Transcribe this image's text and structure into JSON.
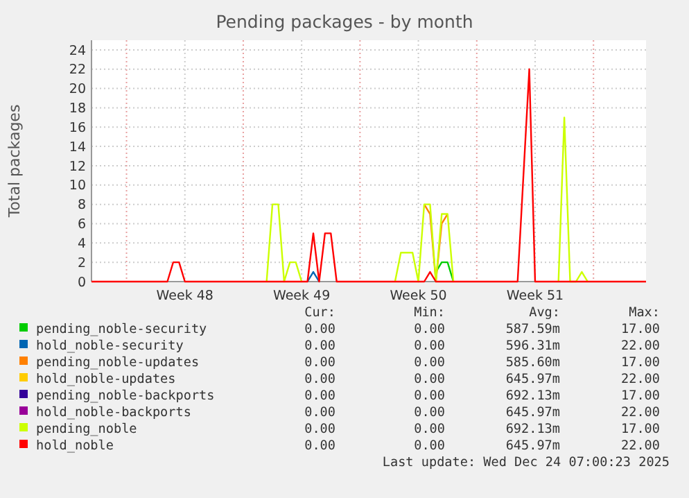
{
  "chart_data": {
    "type": "line",
    "title": "Pending packages - by month",
    "ylabel": "Total packages",
    "categories": [
      null,
      null,
      null,
      null,
      null,
      null,
      null,
      null,
      null,
      null,
      null,
      null,
      null,
      null,
      null,
      null,
      "Week 48",
      null,
      null,
      null,
      null,
      null,
      null,
      null,
      null,
      null,
      null,
      null,
      null,
      null,
      null,
      null,
      null,
      null,
      null,
      null,
      "Week 49",
      null,
      null,
      null,
      null,
      null,
      null,
      null,
      null,
      null,
      null,
      null,
      null,
      null,
      null,
      null,
      null,
      null,
      null,
      null,
      "Week 50",
      null,
      null,
      null,
      null,
      null,
      null,
      null,
      null,
      null,
      null,
      null,
      null,
      null,
      null,
      null,
      null,
      null,
      null,
      null,
      "Week 51",
      null,
      null,
      null,
      null,
      null,
      null,
      null,
      null,
      null,
      null,
      null,
      null,
      null,
      null,
      null,
      null,
      null,
      null,
      null
    ],
    "ylim": [
      0,
      25
    ],
    "yticks": [
      0,
      2,
      4,
      6,
      8,
      10,
      12,
      14,
      16,
      18,
      20,
      22,
      24
    ],
    "grid": true,
    "legend": "bottom",
    "marker": "none",
    "line_style": "solid",
    "series": [
      {
        "name": "pending_noble-security",
        "color": "#00cc00",
        "values": [
          null,
          null,
          null,
          null,
          null,
          null,
          null,
          null,
          null,
          null,
          null,
          null,
          null,
          null,
          null,
          null,
          null,
          null,
          null,
          null,
          null,
          null,
          null,
          null,
          null,
          null,
          null,
          null,
          null,
          null,
          null,
          null,
          null,
          null,
          null,
          null,
          null,
          null,
          null,
          null,
          null,
          null,
          null,
          null,
          null,
          null,
          null,
          null,
          null,
          null,
          null,
          null,
          null,
          null,
          null,
          null,
          null,
          null,
          null,
          1,
          2,
          2,
          0,
          null,
          null,
          null,
          null,
          null,
          null,
          null,
          null,
          null,
          null,
          null,
          null,
          null,
          null,
          null,
          null,
          null,
          null,
          null,
          null,
          null,
          null,
          null,
          null,
          null,
          null,
          null,
          null,
          null,
          null,
          null,
          null,
          null
        ]
      },
      {
        "name": "hold_noble-security",
        "color": "#0066b3",
        "values": [
          null,
          null,
          null,
          null,
          null,
          null,
          null,
          null,
          null,
          null,
          null,
          null,
          null,
          null,
          null,
          null,
          null,
          null,
          null,
          null,
          null,
          null,
          null,
          null,
          null,
          null,
          null,
          null,
          null,
          null,
          null,
          null,
          null,
          null,
          null,
          null,
          null,
          0,
          1,
          0,
          null,
          null,
          null,
          null,
          null,
          null,
          null,
          null,
          null,
          null,
          null,
          null,
          null,
          null,
          null,
          null,
          null,
          null,
          null,
          null,
          null,
          null,
          null,
          null,
          null,
          null,
          null,
          null,
          null,
          null,
          null,
          null,
          null,
          null,
          null,
          null,
          null,
          null,
          null,
          null,
          null,
          null,
          null,
          null,
          null,
          null,
          null,
          null,
          null,
          null,
          null,
          null,
          null,
          null,
          null,
          null
        ]
      },
      {
        "name": "pending_noble-updates",
        "color": "#ff8000",
        "values": [
          null,
          null,
          null,
          null,
          null,
          null,
          null,
          null,
          null,
          null,
          null,
          null,
          null,
          null,
          null,
          null,
          null,
          null,
          null,
          null,
          null,
          null,
          null,
          null,
          null,
          null,
          null,
          null,
          null,
          null,
          null,
          null,
          null,
          null,
          null,
          null,
          null,
          null,
          null,
          null,
          null,
          null,
          null,
          null,
          null,
          null,
          null,
          null,
          null,
          null,
          null,
          null,
          null,
          null,
          null,
          null,
          null,
          8,
          7,
          0,
          6,
          7,
          null,
          null,
          null,
          null,
          null,
          null,
          null,
          null,
          null,
          null,
          null,
          null,
          null,
          null,
          null,
          null,
          null,
          null,
          null,
          null,
          null,
          null,
          null,
          null,
          null,
          null,
          null,
          null,
          null,
          null,
          null,
          null,
          null,
          null
        ]
      },
      {
        "name": "hold_noble-updates",
        "color": "#ffcc00",
        "values": [
          null,
          null,
          null,
          null,
          null,
          null,
          null,
          null,
          null,
          null,
          null,
          null,
          null,
          null,
          null,
          null,
          null,
          null,
          null,
          null,
          null,
          null,
          null,
          null,
          null,
          null,
          null,
          null,
          null,
          null,
          null,
          null,
          null,
          null,
          null,
          null,
          null,
          null,
          null,
          null,
          null,
          null,
          null,
          null,
          null,
          null,
          null,
          null,
          null,
          null,
          null,
          null,
          null,
          null,
          null,
          null,
          null,
          null,
          null,
          null,
          null,
          null,
          null,
          null,
          null,
          null,
          null,
          null,
          null,
          null,
          null,
          null,
          null,
          null,
          null,
          null,
          null,
          null,
          null,
          null,
          null,
          null,
          null,
          null,
          null,
          null,
          null,
          null,
          null,
          null,
          null,
          null,
          null,
          null,
          null,
          null
        ]
      },
      {
        "name": "pending_noble-backports",
        "color": "#330099",
        "values": [
          null,
          null,
          null,
          null,
          null,
          null,
          null,
          null,
          null,
          null,
          null,
          null,
          null,
          null,
          null,
          null,
          null,
          null,
          null,
          null,
          null,
          null,
          null,
          null,
          null,
          null,
          null,
          null,
          null,
          null,
          null,
          null,
          null,
          null,
          null,
          null,
          null,
          null,
          null,
          null,
          null,
          null,
          null,
          null,
          null,
          null,
          null,
          null,
          null,
          null,
          null,
          null,
          null,
          null,
          null,
          null,
          null,
          null,
          null,
          null,
          null,
          null,
          null,
          null,
          null,
          null,
          null,
          null,
          null,
          null,
          null,
          null,
          null,
          null,
          null,
          null,
          null,
          null,
          null,
          null,
          null,
          null,
          null,
          null,
          null,
          null,
          null,
          null,
          null,
          null,
          null,
          null,
          null,
          null,
          null,
          null
        ]
      },
      {
        "name": "hold_noble-backports",
        "color": "#990099",
        "values": [
          null,
          null,
          null,
          null,
          null,
          null,
          null,
          null,
          null,
          null,
          null,
          null,
          null,
          null,
          null,
          null,
          null,
          null,
          null,
          null,
          null,
          null,
          null,
          null,
          null,
          null,
          null,
          null,
          null,
          null,
          null,
          null,
          null,
          null,
          null,
          null,
          null,
          null,
          null,
          null,
          null,
          null,
          null,
          null,
          null,
          null,
          null,
          null,
          null,
          null,
          null,
          null,
          null,
          null,
          null,
          null,
          null,
          null,
          null,
          null,
          null,
          null,
          null,
          null,
          null,
          null,
          null,
          null,
          null,
          null,
          null,
          null,
          null,
          null,
          null,
          null,
          null,
          null,
          null,
          null,
          null,
          null,
          null,
          null,
          null,
          null,
          null,
          null,
          null,
          null,
          null,
          null,
          null,
          null,
          null,
          null
        ]
      },
      {
        "name": "pending_noble",
        "color": "#ccff00",
        "values": [
          null,
          null,
          null,
          null,
          null,
          null,
          null,
          null,
          null,
          null,
          null,
          null,
          null,
          null,
          null,
          null,
          null,
          null,
          null,
          null,
          null,
          null,
          null,
          null,
          null,
          null,
          null,
          null,
          null,
          null,
          0,
          8,
          8,
          0,
          2,
          2,
          0,
          null,
          null,
          null,
          null,
          null,
          null,
          null,
          null,
          null,
          null,
          null,
          null,
          null,
          null,
          null,
          0,
          3,
          3,
          3,
          0,
          8,
          8,
          0,
          7,
          7,
          0,
          null,
          null,
          null,
          null,
          null,
          null,
          null,
          null,
          null,
          null,
          null,
          null,
          null,
          null,
          null,
          null,
          null,
          0,
          17,
          0,
          0,
          1,
          0,
          null,
          null,
          null,
          null,
          null,
          null,
          null,
          null,
          null,
          null
        ]
      },
      {
        "name": "hold_noble",
        "color": "#ff0000",
        "values": [
          0,
          0,
          0,
          0,
          0,
          0,
          0,
          0,
          0,
          0,
          0,
          0,
          0,
          0,
          2,
          2,
          0,
          0,
          0,
          0,
          0,
          0,
          0,
          0,
          0,
          0,
          0,
          0,
          0,
          0,
          0,
          0,
          0,
          0,
          0,
          0,
          0,
          0,
          5,
          0,
          5,
          5,
          0,
          0,
          0,
          0,
          0,
          0,
          0,
          0,
          0,
          0,
          0,
          0,
          0,
          0,
          0,
          0,
          1,
          0,
          0,
          0,
          0,
          0,
          0,
          0,
          0,
          0,
          0,
          0,
          0,
          0,
          0,
          0,
          11,
          22,
          0,
          0,
          0,
          0,
          0,
          0,
          0,
          0,
          0,
          0,
          0,
          0,
          0,
          0,
          0,
          0,
          0,
          0,
          0,
          0
        ]
      }
    ],
    "annotations": [
      "Cur:",
      "Min:",
      "Avg:",
      "Max:",
      "0.00",
      "0.00",
      "587.59m",
      "17.00",
      "0.00",
      "0.00",
      "596.31m",
      "22.00",
      "0.00",
      "0.00",
      "585.60m",
      "17.00",
      "0.00",
      "0.00",
      "645.97m",
      "22.00",
      "0.00",
      "0.00",
      "692.13m",
      "17.00",
      "0.00",
      "0.00",
      "645.97m",
      "22.00",
      "0.00",
      "0.00",
      "692.13m",
      "17.00",
      "0.00",
      "0.00",
      "645.97m",
      "22.00",
      "Last update: Wed Dec 24 07:00:23 2025"
    ]
  }
}
